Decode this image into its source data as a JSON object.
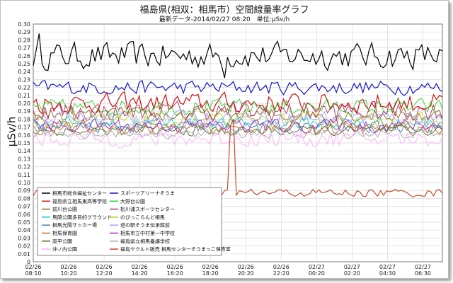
{
  "title": "福島県(相双：相馬市）空間線量率グラフ",
  "subtitle": "最新データ-2014/02/27 08:20　単位:μSv/h",
  "chart_data": {
    "type": "line",
    "ylabel": "μSv/h",
    "ylim": [
      0,
      0.3
    ],
    "yticks": [
      "0",
      "0.01",
      "0.02",
      "0.03",
      "0.04",
      "0.05",
      "0.06",
      "0.07",
      "0.08",
      "0.09",
      "0.10",
      "0.11",
      "0.12",
      "0.13",
      "0.14",
      "0.15",
      "0.16",
      "0.17",
      "0.18",
      "0.19",
      "0.20",
      "0.21",
      "0.22",
      "0.23",
      "0.24",
      "0.25",
      "0.26",
      "0.27",
      "0.28",
      "0.29",
      "0.30"
    ],
    "xticks": [
      {
        "date": "02/26",
        "time": "08:10"
      },
      {
        "date": "02/26",
        "time": "10:20"
      },
      {
        "date": "02/26",
        "time": "12:20"
      },
      {
        "date": "02/26",
        "time": "14:20"
      },
      {
        "date": "02/26",
        "time": "16:20"
      },
      {
        "date": "02/26",
        "time": "18:20"
      },
      {
        "date": "02/26",
        "time": "20:20"
      },
      {
        "date": "02/26",
        "time": "22:20"
      },
      {
        "date": "02/27",
        "time": "00:20"
      },
      {
        "date": "02/27",
        "time": "02:20"
      },
      {
        "date": "02/27",
        "time": "04:30"
      },
      {
        "date": "02/27",
        "time": "06:30"
      }
    ],
    "grid": true,
    "legend_position": "bottom-left",
    "series": [
      {
        "name": "相馬市総合福祉センター",
        "color": "#000000",
        "base": 0.26,
        "amp": 0.013
      },
      {
        "name": "スポーツアリーナそうま",
        "color": "#1414c8",
        "base": 0.22,
        "amp": 0.007
      },
      {
        "name": "福島県立相馬東高等学校",
        "color": "#d01010",
        "base": 0.2,
        "amp": 0.01
      },
      {
        "name": "大野台公園",
        "color": "#2ad02a",
        "base": 0.195,
        "amp": 0.008
      },
      {
        "name": "前川台公園",
        "color": "#8a6a10",
        "base": 0.185,
        "amp": 0.007
      },
      {
        "name": "松川浦スポーツセンター",
        "color": "#b03060",
        "base": 0.19,
        "amp": 0.01
      },
      {
        "name": "馬陵公園多目的グラウンド",
        "color": "#19c8c8",
        "base": 0.175,
        "amp": 0.006
      },
      {
        "name": "のびっこらんど相馬",
        "color": "#bcd020",
        "base": 0.178,
        "amp": 0.007
      },
      {
        "name": "相馬光陽サッカー場",
        "color": "#4682b4",
        "base": 0.17,
        "amp": 0.006
      },
      {
        "name": "道の駅そうま伝承館前",
        "color": "#a0a0ff",
        "base": 0.182,
        "amp": 0.007
      },
      {
        "name": "相馬保育園",
        "color": "#d2691e",
        "base": 0.168,
        "amp": 0.006
      },
      {
        "name": "相馬市立中村第一中学校",
        "color": "#b020c8",
        "base": 0.172,
        "amp": 0.007
      },
      {
        "name": "高平公園",
        "color": "#556b2f",
        "base": 0.165,
        "amp": 0.005
      },
      {
        "name": "福島県立相馬養護学校",
        "color": "#a9a9a9",
        "base": 0.162,
        "amp": 0.005
      },
      {
        "name": "沖ノ内公園",
        "color": "#ffaaff",
        "base": 0.155,
        "amp": 0.008
      },
      {
        "name": "福島ヤクルト販売 相馬センターそうまっこ保育室",
        "color": "#c84b2d",
        "base": 0.087,
        "amp": 0.004
      }
    ]
  }
}
